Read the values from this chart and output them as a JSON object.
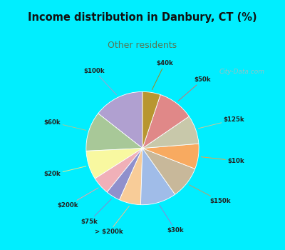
{
  "title": "Income distribution in Danbury, CT (%)",
  "subtitle": "Other residents",
  "title_color": "#111111",
  "subtitle_color": "#557755",
  "bg_cyan": "#00eeff",
  "bg_chart": "#e0f0e8",
  "watermark": "City-Data.com",
  "labels": [
    "$100k",
    "$60k",
    "$20k",
    "$200k",
    "$75k",
    "> $200k",
    "$30k",
    "$150k",
    "$10k",
    "$125k",
    "$50k",
    "$40k"
  ],
  "values": [
    14,
    11,
    8,
    5,
    4,
    6,
    10,
    9,
    7,
    8,
    10,
    5
  ],
  "colors": [
    "#b0a0d0",
    "#a8c898",
    "#f8f8a0",
    "#f0b0b8",
    "#9090cc",
    "#f8cc98",
    "#a0bce8",
    "#c8b89a",
    "#f8aa60",
    "#c8c8aa",
    "#e08888",
    "#b89630"
  ],
  "line_colors": [
    "#a0a0d0",
    "#a0c898",
    "#e8e890",
    "#f0a0a8",
    "#8888cc",
    "#f8bb88",
    "#8888d8",
    "#b8a070",
    "#f8a040",
    "#c8c898",
    "#d07070",
    "#a08820"
  ],
  "start_angle": 90
}
